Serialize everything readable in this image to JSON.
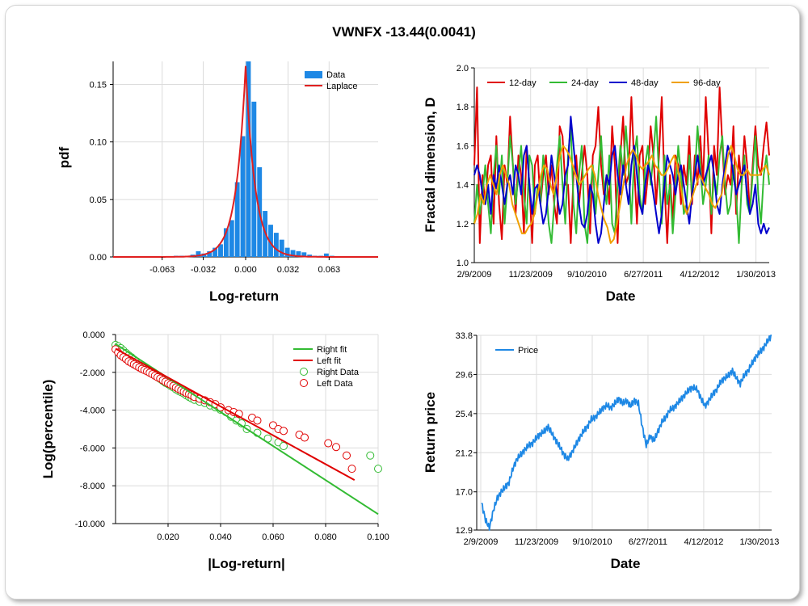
{
  "title": "VWNFX -13.44(0.0041)",
  "chart_data": [
    {
      "type": "bar",
      "panel": "histogram",
      "xlabel": "Log-return",
      "ylabel": "pdf",
      "xlim": [
        -0.1,
        0.1
      ],
      "ylim": [
        0,
        0.17
      ],
      "x_tick_labels": [
        "-0.063",
        "-0.032",
        "0.000",
        "0.032",
        "0.063"
      ],
      "x_tick_values": [
        -0.063,
        -0.032,
        0.0,
        0.032,
        0.063
      ],
      "y_tick_labels": [
        "0.00",
        "0.05",
        "0.10",
        "0.15"
      ],
      "y_tick_values": [
        0.0,
        0.05,
        0.1,
        0.15
      ],
      "grid": true,
      "legend_position": "top-right",
      "series": [
        {
          "name": "Data",
          "kind": "bar",
          "color": "#1e88e5",
          "bin_width": 0.0042,
          "x": [
            -0.0525,
            -0.0483,
            -0.0441,
            -0.0399,
            -0.0357,
            -0.0315,
            -0.0273,
            -0.0231,
            -0.0189,
            -0.0147,
            -0.0105,
            -0.0063,
            -0.0021,
            0.0021,
            0.0063,
            0.0105,
            0.0147,
            0.0189,
            0.0231,
            0.0273,
            0.0315,
            0.0357,
            0.0399,
            0.0441,
            0.0483,
            0.0525,
            0.0567,
            0.0609,
            0.0651
          ],
          "values": [
            0.001,
            0.001,
            0.001,
            0.002,
            0.005,
            0.003,
            0.005,
            0.008,
            0.011,
            0.025,
            0.032,
            0.065,
            0.105,
            0.175,
            0.135,
            0.078,
            0.04,
            0.028,
            0.021,
            0.015,
            0.008,
            0.006,
            0.005,
            0.004,
            0.002,
            0.001,
            0.001,
            0.003,
            0.001
          ]
        },
        {
          "name": "Laplace",
          "kind": "line",
          "color": "#e02020",
          "location": 0.0,
          "scale": 0.0072,
          "peak": 0.166
        }
      ]
    },
    {
      "type": "line",
      "panel": "fractal",
      "xlabel": "Date",
      "ylabel": "Fractal dimension, D",
      "ylim": [
        1.0,
        2.0
      ],
      "x_tick_labels": [
        "2/9/2009",
        "11/23/2009",
        "9/10/2010",
        "6/27/2011",
        "4/12/2012",
        "1/30/2013"
      ],
      "y_tick_labels": [
        "1.0",
        "1.2",
        "1.4",
        "1.6",
        "1.8",
        "2.0"
      ],
      "y_tick_values": [
        1.0,
        1.2,
        1.4,
        1.6,
        1.8,
        2.0
      ],
      "grid": true,
      "legend_position": "top",
      "series": [
        {
          "name": "12-day",
          "color": "#e00000",
          "values": [
            1.5,
            1.9,
            1.1,
            1.45,
            1.3,
            1.5,
            1.55,
            1.2,
            1.65,
            1.3,
            1.12,
            1.5,
            1.4,
            1.75,
            1.5,
            1.25,
            1.55,
            1.45,
            1.15,
            1.6,
            1.4,
            1.1,
            1.5,
            1.55,
            1.3,
            1.45,
            1.55,
            1.35,
            1.5,
            1.3,
            1.2,
            1.7,
            1.65,
            1.4,
            1.4,
            1.1,
            1.45,
            1.55,
            1.3,
            1.45,
            1.6,
            1.45,
            1.15,
            1.55,
            1.6,
            1.8,
            1.5,
            1.35,
            1.45,
            1.3,
            1.7,
            1.5,
            1.1,
            1.55,
            1.75,
            1.4,
            1.45,
            1.85,
            1.5,
            1.2,
            1.55,
            1.6,
            1.3,
            1.45,
            1.7,
            1.55,
            1.3,
            1.55,
            1.85,
            1.4,
            1.1,
            1.45,
            1.2,
            1.55,
            1.5,
            1.3,
            1.5,
            1.4,
            1.65,
            1.3,
            1.55,
            1.4,
            1.65,
            1.4,
            1.85,
            1.55,
            1.15,
            1.6,
            1.45,
            1.9,
            1.6,
            1.35,
            1.45,
            1.4,
            1.7,
            1.25,
            1.55,
            1.4,
            1.65,
            1.5,
            1.25,
            1.5,
            1.7,
            1.5,
            1.45,
            1.6,
            1.72,
            1.55
          ]
        },
        {
          "name": "24-day",
          "color": "#33bb33",
          "values": [
            1.2,
            1.4,
            1.25,
            1.35,
            1.5,
            1.3,
            1.15,
            1.45,
            1.6,
            1.35,
            1.55,
            1.2,
            1.4,
            1.65,
            1.5,
            1.3,
            1.45,
            1.6,
            1.35,
            1.2,
            1.55,
            1.5,
            1.25,
            1.4,
            1.3,
            1.55,
            1.4,
            1.2,
            1.1,
            1.3,
            1.5,
            1.65,
            1.4,
            1.2,
            1.55,
            1.7,
            1.3,
            1.15,
            1.45,
            1.6,
            1.2,
            1.1,
            1.35,
            1.5,
            1.25,
            1.45,
            1.65,
            1.4,
            1.3,
            1.55,
            1.2,
            1.15,
            1.4,
            1.6,
            1.45,
            1.7,
            1.5,
            1.2,
            1.55,
            1.65,
            1.35,
            1.25,
            1.5,
            1.6,
            1.4,
            1.55,
            1.75,
            1.45,
            1.2,
            1.55,
            1.3,
            1.4,
            1.15,
            1.35,
            1.6,
            1.45,
            1.25,
            1.3,
            1.55,
            1.35,
            1.45,
            1.7,
            1.5,
            1.3,
            1.4,
            1.55,
            1.25,
            1.45,
            1.35,
            1.55,
            1.65,
            1.4,
            1.25,
            1.3,
            1.5,
            1.35,
            1.1,
            1.4,
            1.55,
            1.3,
            1.25,
            1.45,
            1.65,
            1.35,
            1.2,
            1.45,
            1.55,
            1.4
          ]
        },
        {
          "name": "48-day",
          "color": "#0000cc",
          "values": [
            1.45,
            1.5,
            1.45,
            1.35,
            1.3,
            1.4,
            1.25,
            1.45,
            1.38,
            1.5,
            1.4,
            1.3,
            1.4,
            1.45,
            1.35,
            1.5,
            1.45,
            1.35,
            1.55,
            1.6,
            1.4,
            1.25,
            1.38,
            1.4,
            1.3,
            1.2,
            1.25,
            1.38,
            1.55,
            1.45,
            1.35,
            1.25,
            1.3,
            1.45,
            1.5,
            1.75,
            1.6,
            1.45,
            1.3,
            1.2,
            1.18,
            1.25,
            1.4,
            1.35,
            1.2,
            1.1,
            1.15,
            1.3,
            1.45,
            1.4,
            1.55,
            1.6,
            1.45,
            1.35,
            1.5,
            1.4,
            1.3,
            1.5,
            1.6,
            1.45,
            1.3,
            1.25,
            1.4,
            1.5,
            1.45,
            1.35,
            1.25,
            1.15,
            1.25,
            1.4,
            1.55,
            1.5,
            1.45,
            1.35,
            1.45,
            1.5,
            1.4,
            1.3,
            1.2,
            1.35,
            1.45,
            1.55,
            1.45,
            1.4,
            1.45,
            1.5,
            1.55,
            1.45,
            1.3,
            1.25,
            1.4,
            1.5,
            1.6,
            1.55,
            1.45,
            1.35,
            1.4,
            1.45,
            1.5,
            1.35,
            1.25,
            1.3,
            1.4,
            1.2,
            1.15,
            1.2,
            1.15,
            1.18
          ]
        },
        {
          "name": "96-day",
          "color": "#f0a000",
          "values": [
            1.2,
            1.25,
            1.35,
            1.3,
            1.4,
            1.45,
            1.4,
            1.35,
            1.45,
            1.5,
            1.45,
            1.4,
            1.3,
            1.25,
            1.2,
            1.15,
            1.15,
            1.18,
            1.2,
            1.25,
            1.35,
            1.45,
            1.5,
            1.48,
            1.4,
            1.35,
            1.45,
            1.55,
            1.6,
            1.58,
            1.55,
            1.5,
            1.45,
            1.4,
            1.42,
            1.45,
            1.48,
            1.5,
            1.45,
            1.35,
            1.28,
            1.22,
            1.18,
            1.1,
            1.12,
            1.2,
            1.3,
            1.4,
            1.5,
            1.55,
            1.58,
            1.55,
            1.5,
            1.48,
            1.5,
            1.52,
            1.55,
            1.5,
            1.48,
            1.45,
            1.45,
            1.48,
            1.52,
            1.55,
            1.5,
            1.4,
            1.3,
            1.25,
            1.3,
            1.35,
            1.4,
            1.45,
            1.42,
            1.38,
            1.35,
            1.3,
            1.28,
            1.32,
            1.35,
            1.45,
            1.55,
            1.6,
            1.55,
            1.48,
            1.45,
            1.45,
            1.48,
            1.45,
            1.45,
            1.45,
            1.45,
            1.48,
            1.5,
            1.45
          ]
        }
      ]
    },
    {
      "type": "scatter",
      "panel": "tail",
      "xlabel": "|Log-return|",
      "ylabel": "Log(percentile)",
      "xlim": [
        0.0,
        0.1
      ],
      "ylim": [
        -10.0,
        0.0
      ],
      "x_tick_labels": [
        "0.020",
        "0.040",
        "0.060",
        "0.080",
        "0.100"
      ],
      "x_tick_values": [
        0.02,
        0.04,
        0.06,
        0.08,
        0.1
      ],
      "y_tick_labels": [
        "0.000",
        "-2.000",
        "-4.000",
        "-6.000",
        "-8.000",
        "-10.000"
      ],
      "y_tick_values": [
        0.0,
        -2.0,
        -4.0,
        -6.0,
        -8.0,
        -10.0
      ],
      "grid": true,
      "legend_position": "top-right",
      "series": [
        {
          "name": "Right fit",
          "kind": "line",
          "color": "#33bb33",
          "x": [
            0.0,
            0.1
          ],
          "y": [
            -0.5,
            -9.5
          ]
        },
        {
          "name": "Left fit",
          "kind": "line",
          "color": "#e00000",
          "x": [
            0.0,
            0.091
          ],
          "y": [
            -0.75,
            -7.7
          ]
        },
        {
          "name": "Right Data",
          "kind": "scatter",
          "color": "#33bb33",
          "x": [
            0.0,
            0.001,
            0.002,
            0.003,
            0.004,
            0.005,
            0.006,
            0.007,
            0.008,
            0.009,
            0.01,
            0.011,
            0.012,
            0.013,
            0.014,
            0.015,
            0.016,
            0.017,
            0.018,
            0.019,
            0.02,
            0.021,
            0.022,
            0.023,
            0.024,
            0.025,
            0.026,
            0.027,
            0.028,
            0.029,
            0.03,
            0.032,
            0.034,
            0.036,
            0.038,
            0.04,
            0.042,
            0.044,
            0.046,
            0.048,
            0.05,
            0.054,
            0.058,
            0.062,
            0.064,
            0.097,
            0.1
          ],
          "y": [
            -0.55,
            -0.62,
            -0.72,
            -0.85,
            -0.98,
            -1.1,
            -1.2,
            -1.32,
            -1.42,
            -1.55,
            -1.65,
            -1.75,
            -1.85,
            -1.95,
            -2.05,
            -2.15,
            -2.25,
            -2.35,
            -2.45,
            -2.55,
            -2.62,
            -2.72,
            -2.8,
            -2.9,
            -2.98,
            -3.05,
            -3.12,
            -3.22,
            -3.3,
            -3.38,
            -3.45,
            -3.55,
            -3.62,
            -3.75,
            -3.85,
            -3.98,
            -4.1,
            -4.35,
            -4.55,
            -4.7,
            -5.0,
            -5.2,
            -5.5,
            -5.7,
            -5.9,
            -6.4,
            -7.1
          ]
        },
        {
          "name": "Left Data",
          "kind": "scatter",
          "color": "#e00000",
          "x": [
            0.0,
            0.001,
            0.002,
            0.003,
            0.004,
            0.005,
            0.006,
            0.007,
            0.008,
            0.009,
            0.01,
            0.011,
            0.012,
            0.013,
            0.014,
            0.015,
            0.016,
            0.017,
            0.018,
            0.019,
            0.02,
            0.021,
            0.022,
            0.023,
            0.024,
            0.025,
            0.026,
            0.027,
            0.028,
            0.029,
            0.03,
            0.032,
            0.034,
            0.036,
            0.038,
            0.04,
            0.043,
            0.045,
            0.047,
            0.052,
            0.054,
            0.06,
            0.062,
            0.064,
            0.07,
            0.072,
            0.081,
            0.084,
            0.088,
            0.09
          ],
          "y": [
            -0.78,
            -0.95,
            -1.1,
            -1.2,
            -1.3,
            -1.42,
            -1.5,
            -1.58,
            -1.66,
            -1.74,
            -1.82,
            -1.88,
            -1.95,
            -2.02,
            -2.1,
            -2.18,
            -2.26,
            -2.33,
            -2.42,
            -2.5,
            -2.58,
            -2.65,
            -2.72,
            -2.8,
            -2.88,
            -2.95,
            -3.02,
            -3.1,
            -3.15,
            -3.22,
            -3.3,
            -3.4,
            -3.48,
            -3.58,
            -3.68,
            -3.85,
            -4.0,
            -4.1,
            -4.2,
            -4.4,
            -4.55,
            -4.8,
            -5.0,
            -5.1,
            -5.3,
            -5.45,
            -5.75,
            -5.95,
            -6.4,
            -7.1
          ]
        }
      ]
    },
    {
      "type": "line",
      "panel": "price",
      "xlabel": "Date",
      "ylabel": "Return price",
      "ylim": [
        12.9,
        33.8
      ],
      "x_tick_labels": [
        "2/9/2009",
        "11/23/2009",
        "9/10/2010",
        "6/27/2011",
        "4/12/2012",
        "1/30/2013"
      ],
      "y_tick_labels": [
        "12.9",
        "17.0",
        "21.2",
        "25.4",
        "29.6",
        "33.8"
      ],
      "y_tick_values": [
        12.9,
        17.0,
        21.2,
        25.4,
        29.6,
        33.8
      ],
      "grid": true,
      "legend_position": "top-left",
      "series": [
        {
          "name": "Price",
          "color": "#1e88e5",
          "values": [
            15.8,
            14.0,
            13.1,
            15.0,
            16.3,
            17.0,
            17.5,
            18.0,
            19.5,
            20.5,
            21.0,
            21.5,
            22.0,
            22.2,
            22.8,
            23.2,
            23.5,
            24.0,
            23.2,
            22.5,
            21.8,
            21.0,
            20.5,
            21.2,
            22.0,
            22.8,
            23.5,
            24.0,
            24.8,
            25.0,
            25.5,
            26.0,
            26.3,
            26.0,
            26.5,
            27.0,
            26.5,
            26.8,
            26.2,
            26.8,
            26.5,
            24.0,
            22.0,
            23.0,
            22.5,
            23.5,
            24.5,
            25.0,
            25.8,
            26.0,
            26.5,
            27.0,
            27.5,
            28.0,
            28.2,
            28.0,
            27.0,
            26.2,
            26.8,
            27.5,
            28.0,
            28.8,
            29.2,
            29.5,
            30.0,
            29.2,
            28.6,
            29.5,
            30.0,
            30.8,
            31.5,
            32.0,
            32.5,
            33.2,
            33.8
          ]
        }
      ]
    }
  ]
}
